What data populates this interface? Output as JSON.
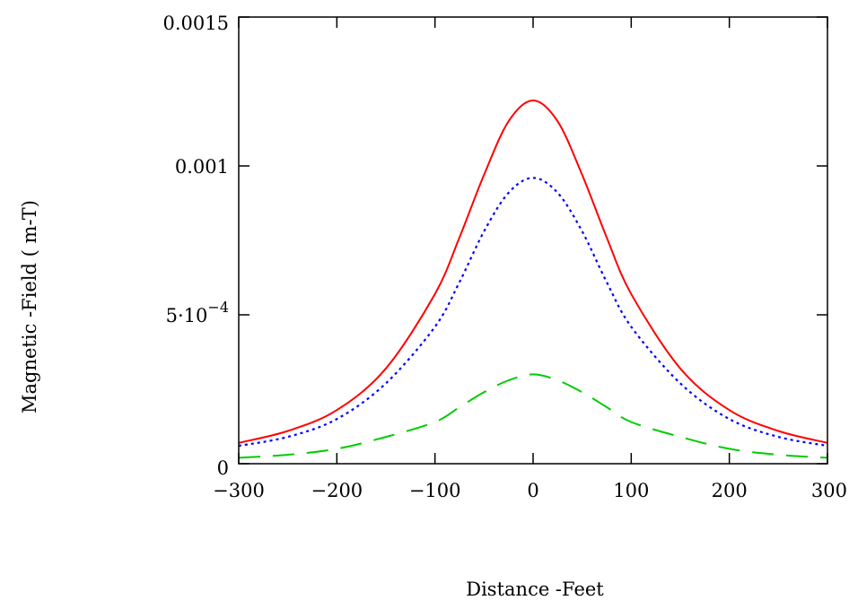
{
  "chart_data": {
    "type": "line",
    "title": "",
    "xlabel": "Distance -Feet",
    "ylabel": "Magnetic -Field ( m-T)",
    "xlim": [
      -300,
      300
    ],
    "ylim": [
      0,
      0.0015
    ],
    "grid": false,
    "x_ticks": [
      -300,
      -200,
      -100,
      0,
      100,
      200,
      300
    ],
    "x_tick_labels": [
      "−300",
      "−200",
      "−100",
      "0",
      "100",
      "200",
      "300"
    ],
    "y_ticks": [
      0,
      0.0005,
      0.001,
      0.0015
    ],
    "y_tick_labels": [
      {
        "text": "0",
        "sup": ""
      },
      {
        "text": "5·10",
        "sup": "−4"
      },
      {
        "text": "0.001",
        "sup": ""
      },
      {
        "text": "0.0015",
        "sup": ""
      }
    ],
    "x": [
      -300,
      -250,
      -200,
      -150,
      -100,
      -75,
      -50,
      -25,
      0,
      25,
      50,
      75,
      100,
      150,
      200,
      250,
      300
    ],
    "series": [
      {
        "color": "#ff0000",
        "style": "solid",
        "values": [
          7e-05,
          0.00011,
          0.00018,
          0.00032,
          0.00057,
          0.00076,
          0.00097,
          0.00115,
          0.00122,
          0.00115,
          0.00097,
          0.00076,
          0.00057,
          0.00032,
          0.00018,
          0.00011,
          7e-05
        ]
      },
      {
        "color": "#0000ff",
        "style": "dotted",
        "values": [
          6e-05,
          9e-05,
          0.00015,
          0.00027,
          0.00046,
          0.00061,
          0.00078,
          0.00091,
          0.00096,
          0.00091,
          0.00078,
          0.00061,
          0.00046,
          0.00027,
          0.00015,
          9e-05,
          6e-05
        ]
      },
      {
        "color": "#00cc00",
        "style": "dashed",
        "values": [
          2e-05,
          3e-05,
          5e-05,
          9e-05,
          0.00014,
          0.00019,
          0.00024,
          0.00028,
          0.0003,
          0.00028,
          0.00024,
          0.00019,
          0.00014,
          9e-05,
          5e-05,
          3e-05,
          2e-05
        ]
      }
    ]
  }
}
